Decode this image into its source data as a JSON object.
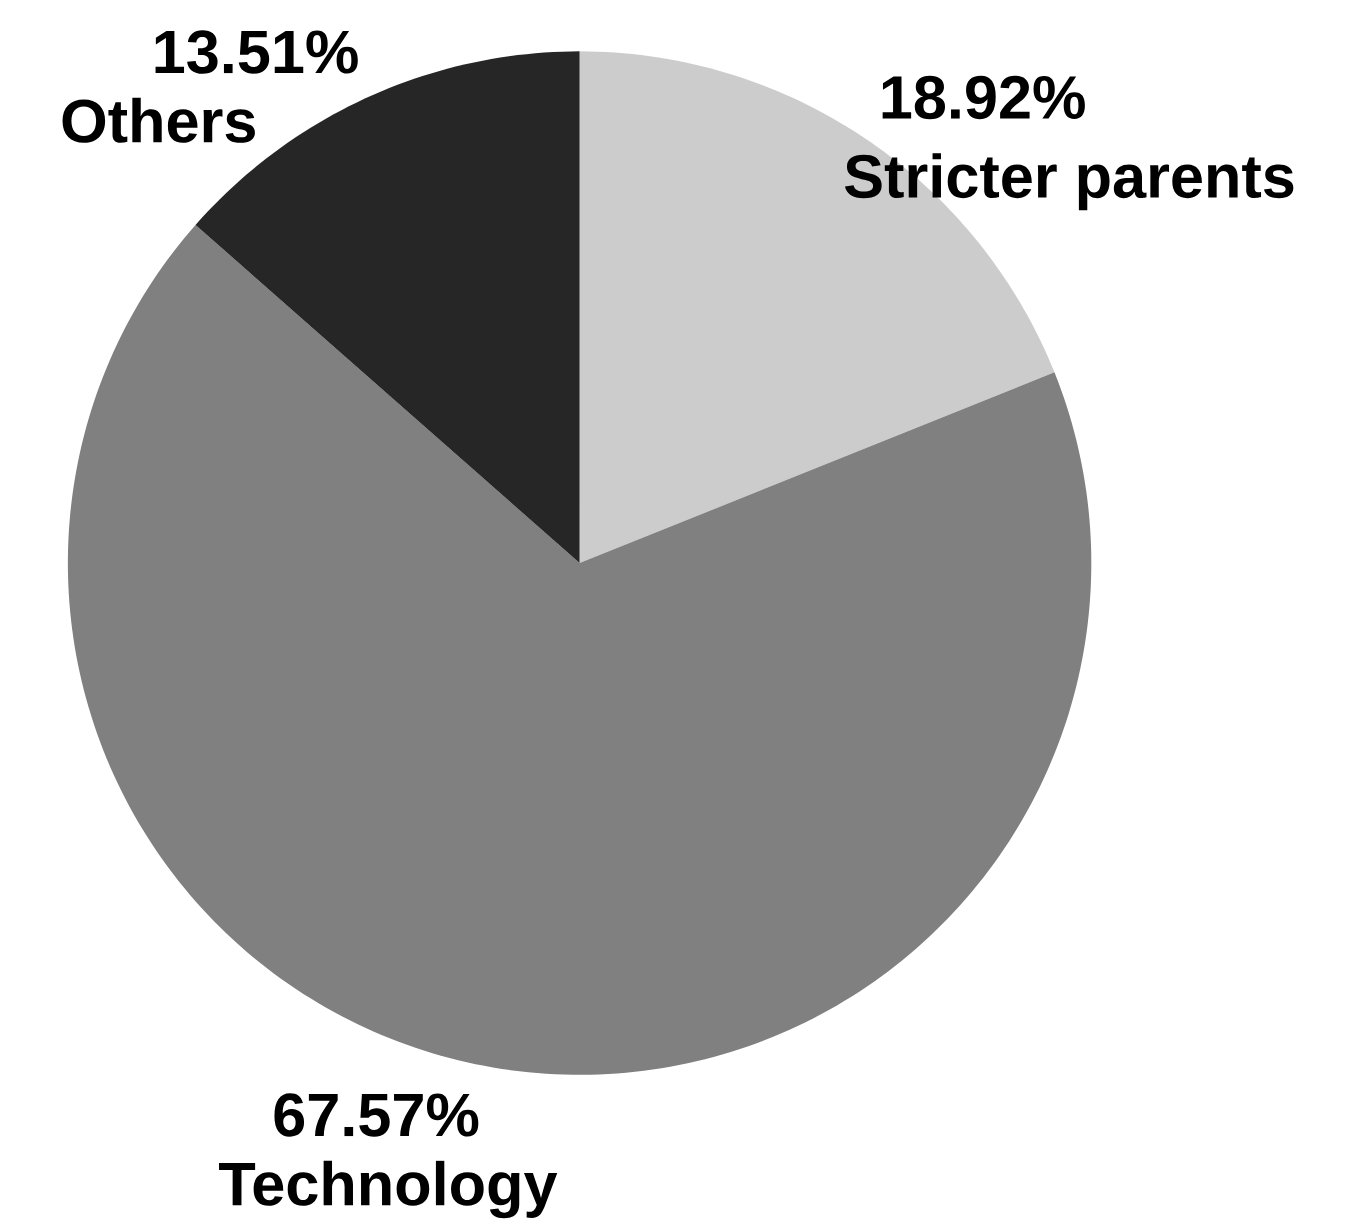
{
  "chart_data": {
    "type": "pie",
    "categories": [
      "Stricter parents",
      "Technology",
      "Others"
    ],
    "values": [
      18.92,
      67.57,
      13.51
    ],
    "colors": [
      "#cccccc",
      "#808080",
      "#262626"
    ],
    "value_labels": [
      "18.92%",
      "67.57%",
      "13.51%"
    ]
  }
}
